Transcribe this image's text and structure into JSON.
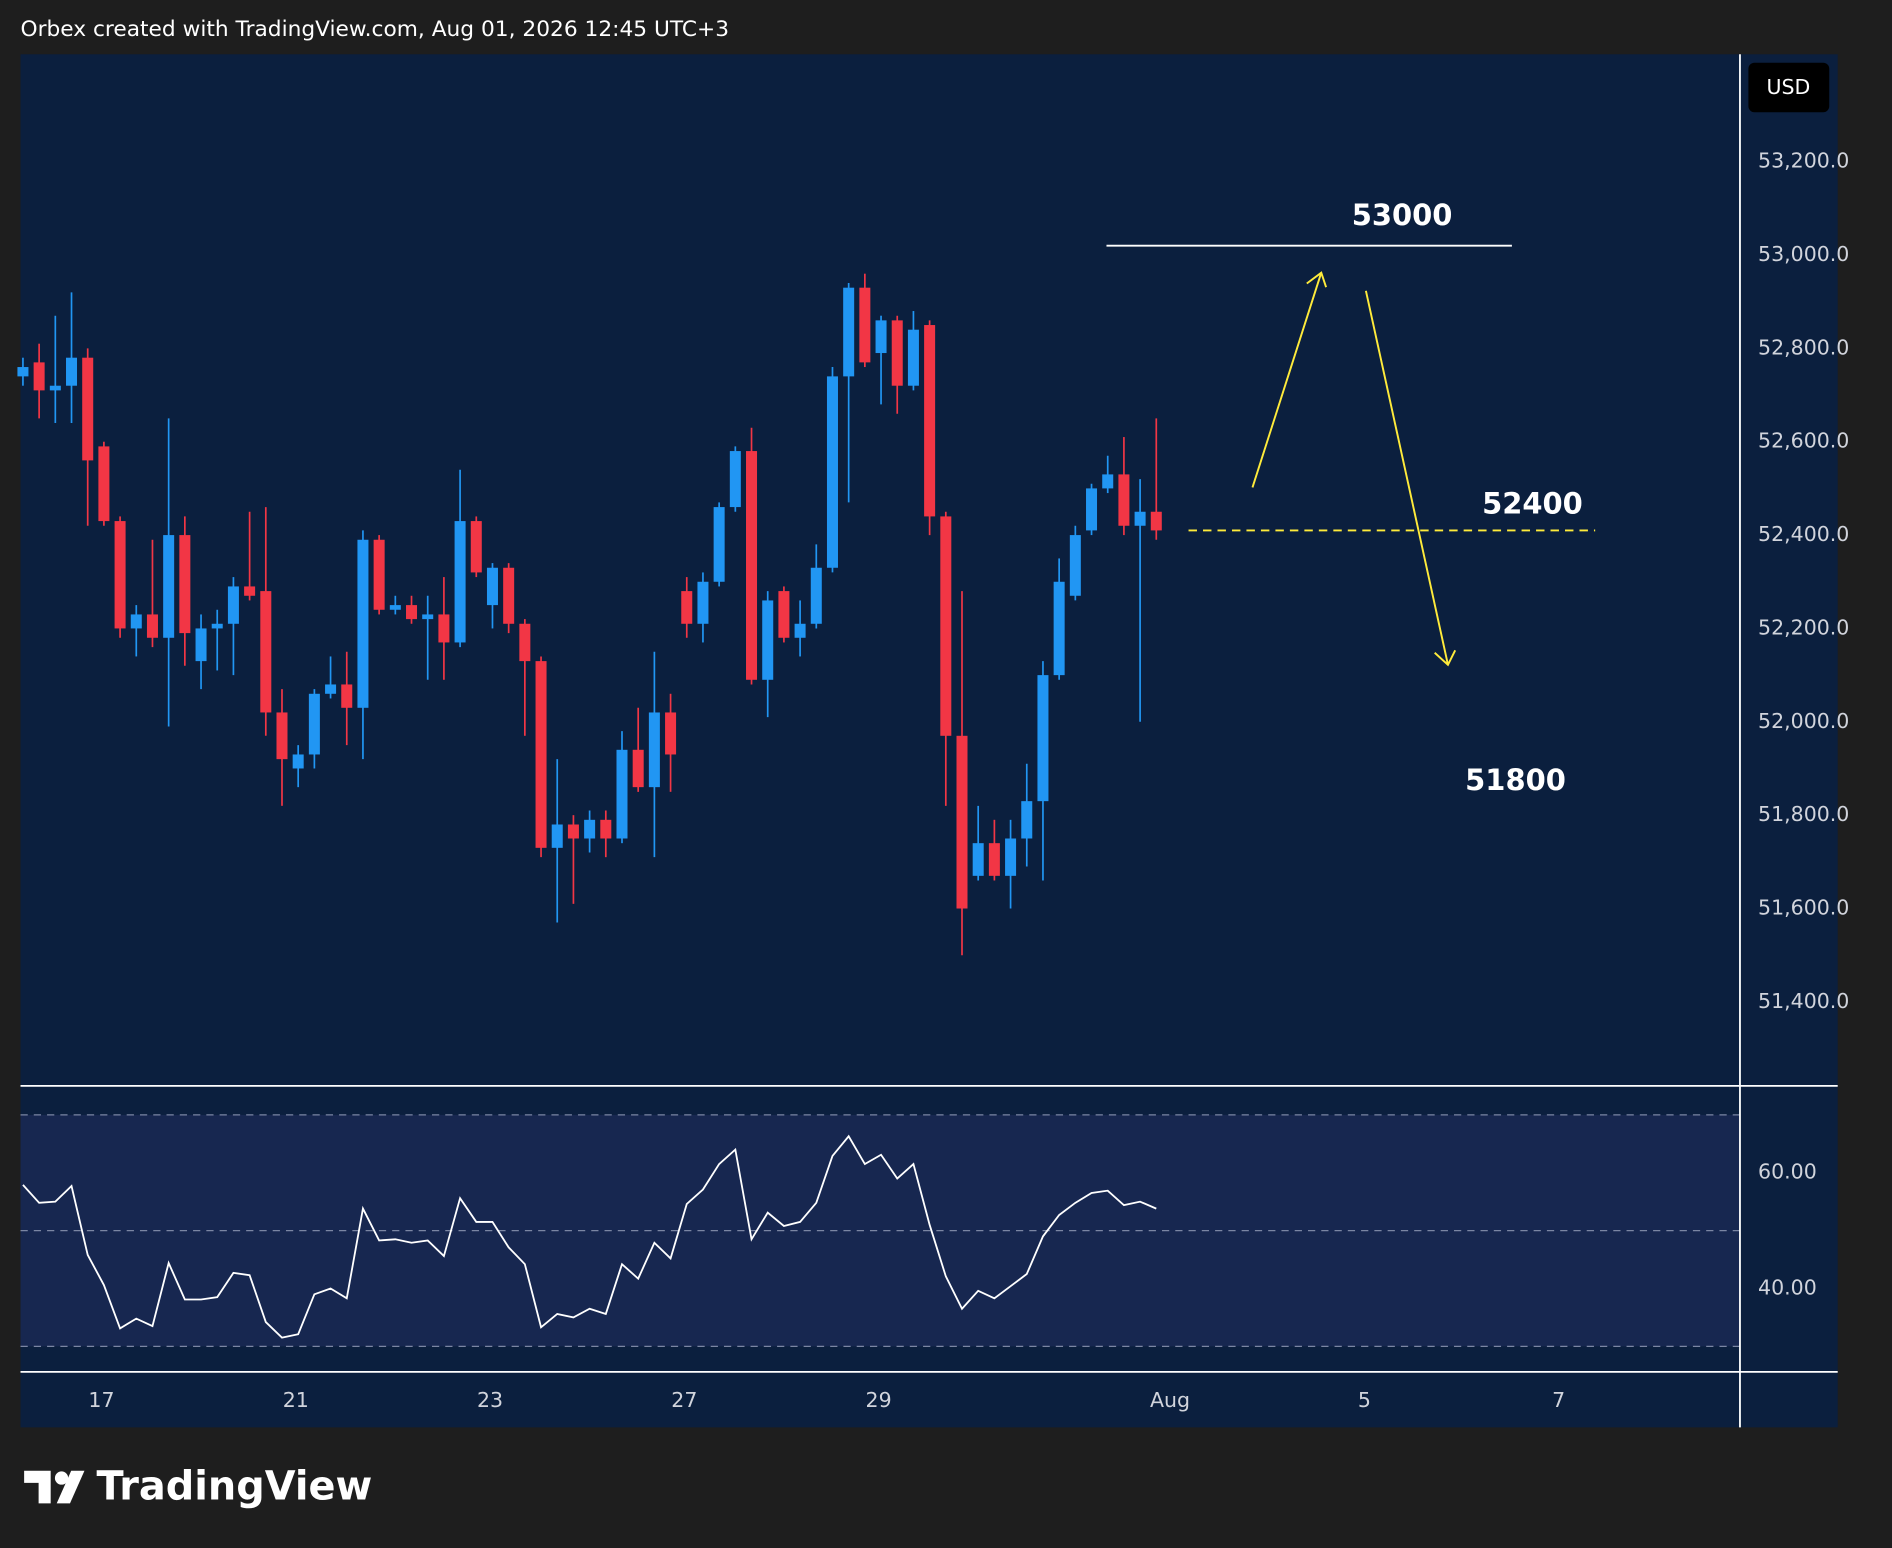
{
  "header": "Orbex created with TradingView.com, Aug 01, 2026 12:45 UTC+3",
  "footer": "TradingView",
  "chart_data": [
    {
      "type": "candlestick",
      "currency": "USD",
      "up_color": "#2196f3",
      "down_color": "#f23645",
      "open": [
        52740,
        52770,
        52710,
        52720,
        52780,
        52590,
        52430,
        52200,
        52230,
        52180,
        52400,
        52130,
        52200,
        52210,
        52290,
        52280,
        52020,
        51900,
        51930,
        52060,
        52080,
        52030,
        52390,
        52240,
        52250,
        52220,
        52230,
        52170,
        52430,
        52250,
        52330,
        52210,
        52130,
        51730,
        51780,
        51750,
        51790,
        51750,
        51940,
        51860,
        52020,
        52280,
        52210,
        52300,
        52460,
        52580,
        52090,
        52280,
        52180,
        52210,
        52330,
        52740,
        52930,
        52790,
        52860,
        52720,
        52850,
        52440,
        51970,
        51670,
        51740,
        51670,
        51750,
        51830,
        52100,
        52270,
        52410,
        52500,
        52530,
        52420,
        52450
      ],
      "high": [
        52780,
        52810,
        52870,
        52920,
        52800,
        52600,
        52440,
        52250,
        52390,
        52650,
        52440,
        52230,
        52240,
        52310,
        52450,
        52460,
        52070,
        51950,
        52070,
        52140,
        52150,
        52410,
        52400,
        52270,
        52270,
        52270,
        52310,
        52540,
        52440,
        52340,
        52340,
        52220,
        52140,
        51920,
        51800,
        51810,
        51810,
        51980,
        52030,
        52150,
        52060,
        52310,
        52320,
        52470,
        52590,
        52630,
        52280,
        52290,
        52260,
        52380,
        52760,
        52940,
        52960,
        52870,
        52870,
        52880,
        52860,
        52450,
        52280,
        51820,
        51790,
        51790,
        51910,
        52130,
        52350,
        52420,
        52510,
        52570,
        52610,
        52520,
        52650
      ],
      "low": [
        52720,
        52650,
        52640,
        52640,
        52420,
        52420,
        52180,
        52140,
        52160,
        51990,
        52120,
        52070,
        52110,
        52100,
        52260,
        51970,
        51820,
        51860,
        51900,
        52050,
        51950,
        51920,
        52230,
        52230,
        52210,
        52090,
        52090,
        52160,
        52310,
        52200,
        52190,
        51970,
        51710,
        51570,
        51610,
        51720,
        51710,
        51740,
        51850,
        51710,
        51850,
        52180,
        52170,
        52290,
        52450,
        52080,
        52010,
        52170,
        52140,
        52200,
        52320,
        52470,
        52760,
        52680,
        52660,
        52710,
        52400,
        51820,
        51500,
        51660,
        51660,
        51600,
        51690,
        51660,
        52090,
        52260,
        52400,
        52490,
        52400,
        52000,
        52390
      ],
      "close": [
        52760,
        52710,
        52720,
        52780,
        52560,
        52430,
        52200,
        52230,
        52180,
        52400,
        52190,
        52200,
        52210,
        52290,
        52270,
        52020,
        51920,
        51930,
        52060,
        52080,
        52030,
        52390,
        52240,
        52250,
        52220,
        52230,
        52170,
        52430,
        52320,
        52330,
        52210,
        52130,
        51730,
        51780,
        51750,
        51790,
        51750,
        51940,
        51860,
        52020,
        51930,
        52210,
        52300,
        52460,
        52580,
        52090,
        52260,
        52180,
        52210,
        52330,
        52740,
        52930,
        52770,
        52860,
        52720,
        52840,
        52440,
        51970,
        51600,
        51740,
        51670,
        51750,
        51830,
        52100,
        52300,
        52400,
        52500,
        52530,
        52420,
        52450,
        52410
      ],
      "xlim": [
        -0.15,
        106.05
      ],
      "xticks": [
        {
          "value": 4.85,
          "label": "17"
        },
        {
          "value": 16.85,
          "label": "21"
        },
        {
          "value": 28.85,
          "label": "23"
        },
        {
          "value": 40.85,
          "label": "27"
        },
        {
          "value": 52.85,
          "label": "29"
        },
        {
          "value": 70.85,
          "label": "Aug"
        },
        {
          "value": 82.85,
          "label": "5"
        },
        {
          "value": 94.85,
          "label": "7"
        }
      ],
      "ylim": [
        51220,
        53430
      ],
      "yticks": [
        {
          "value": 51400,
          "label": "51,400.0"
        },
        {
          "value": 51600,
          "label": "51,600.0"
        },
        {
          "value": 51800,
          "label": "51,800.0"
        },
        {
          "value": 52000,
          "label": "52,000.0"
        },
        {
          "value": 52200,
          "label": "52,200.0"
        },
        {
          "value": 52400,
          "label": "52,400.0"
        },
        {
          "value": 52600,
          "label": "52,600.0"
        },
        {
          "value": 52800,
          "label": "52,800.0"
        },
        {
          "value": 53000,
          "label": "53,000.0"
        },
        {
          "value": 53200,
          "label": "53,200.0"
        }
      ],
      "lines": [
        {
          "value": 53020,
          "color": "#ffffff",
          "dashed": false
        },
        {
          "value": 52410,
          "color": "#ffeb3b",
          "dashed": true
        }
      ],
      "annotations": [
        {
          "text": "53000"
        },
        {
          "text": "52400"
        },
        {
          "text": "51800"
        }
      ]
    },
    {
      "type": "line",
      "color": "#ffffff",
      "values": [
        57.9,
        54.8,
        55.0,
        57.7,
        45.8,
        40.6,
        33.1,
        34.8,
        33.5,
        44.4,
        38.1,
        38.1,
        38.5,
        42.7,
        42.3,
        34.2,
        31.5,
        32.1,
        39.0,
        40.0,
        38.3,
        53.8,
        48.3,
        48.5,
        47.9,
        48.3,
        45.6,
        55.6,
        51.5,
        51.5,
        47.1,
        44.2,
        33.3,
        35.6,
        35.0,
        36.5,
        35.6,
        44.2,
        41.7,
        47.9,
        45.2,
        54.6,
        57.1,
        61.5,
        64.0,
        48.5,
        53.1,
        50.8,
        51.5,
        54.8,
        62.9,
        66.3,
        61.5,
        63.1,
        59.0,
        61.5,
        51.0,
        42.1,
        36.5,
        39.6,
        38.3,
        40.4,
        42.5,
        49.0,
        52.7,
        54.8,
        56.5,
        56.9,
        54.4,
        55.0,
        53.8
      ],
      "ylim": [
        25.6,
        75
      ],
      "yticks": [
        {
          "value": 60,
          "label": "60.00"
        },
        {
          "value": 40,
          "label": "40.00"
        }
      ],
      "levels": [
        70,
        50,
        30
      ]
    }
  ]
}
